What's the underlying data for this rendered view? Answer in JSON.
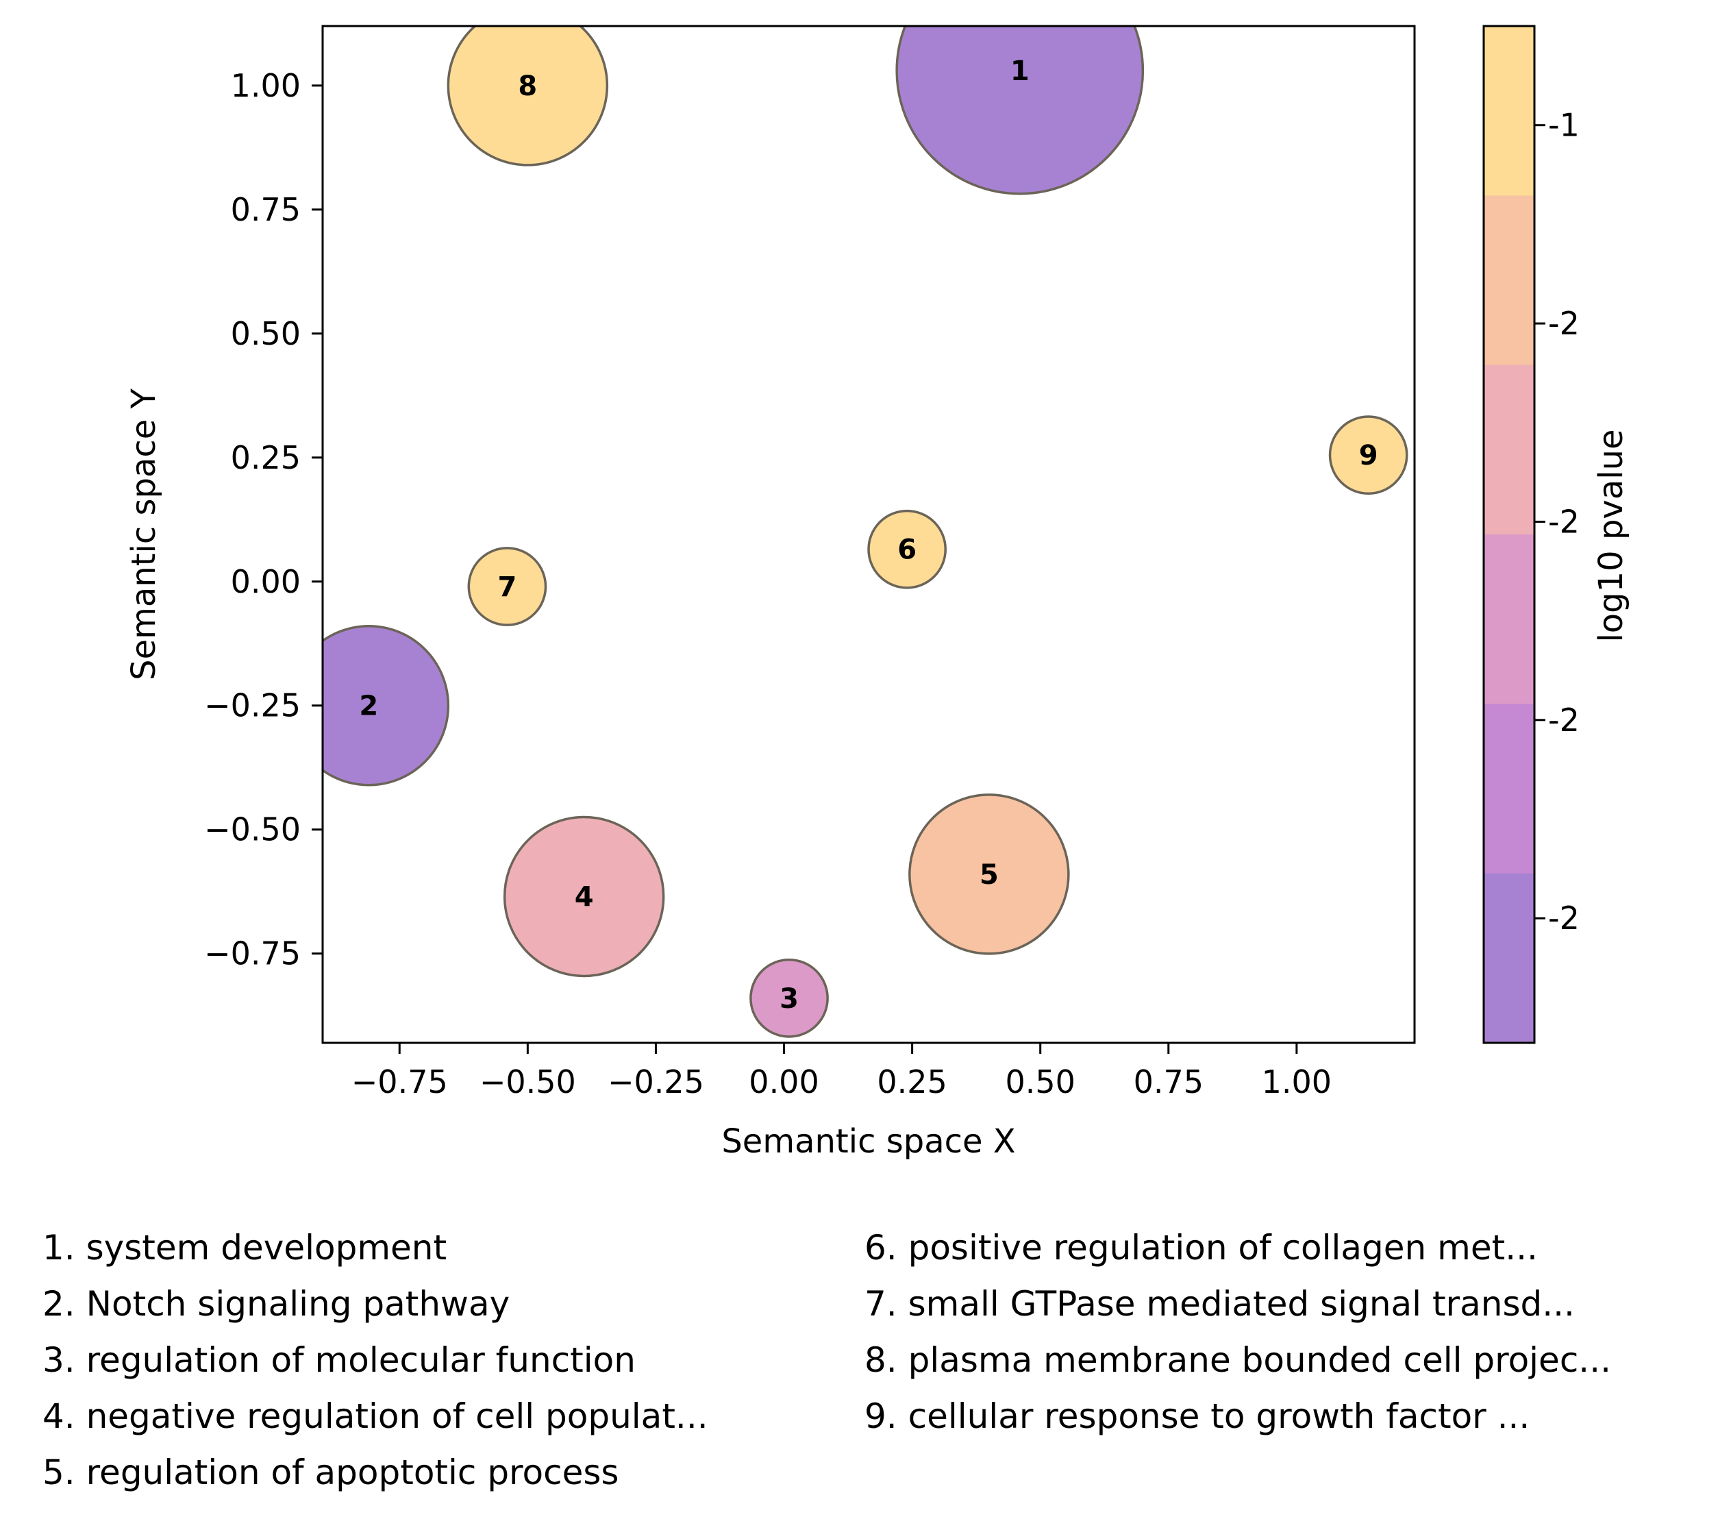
{
  "chart_data": {
    "type": "scatter",
    "xlabel": "Semantic space X",
    "ylabel": "Semantic space Y",
    "xlim": [
      -0.9,
      1.23
    ],
    "ylim": [
      -0.93,
      1.12
    ],
    "x_ticks": [
      -0.75,
      -0.5,
      -0.25,
      0.0,
      0.25,
      0.5,
      0.75,
      1.0
    ],
    "x_tick_labels": [
      "−0.75",
      "−0.50",
      "−0.25",
      "0.00",
      "0.25",
      "0.50",
      "0.75",
      "1.00"
    ],
    "y_ticks": [
      1.0,
      0.75,
      0.5,
      0.25,
      0.0,
      -0.25,
      -0.5,
      -0.75
    ],
    "y_tick_labels": [
      "1.00",
      "0.75",
      "0.50",
      "0.25",
      "0.00",
      "−0.25",
      "−0.50",
      "−0.75"
    ],
    "grid": false,
    "points": [
      {
        "id": "1",
        "x": 0.46,
        "y": 1.03,
        "size": 0.24,
        "color": "#a882d2"
      },
      {
        "id": "2",
        "x": -0.81,
        "y": -0.25,
        "size": 0.155,
        "color": "#a882d2"
      },
      {
        "id": "3",
        "x": 0.01,
        "y": -0.84,
        "size": 0.075,
        "color": "#dc9ac8"
      },
      {
        "id": "4",
        "x": -0.39,
        "y": -0.635,
        "size": 0.155,
        "color": "#eeb0b6"
      },
      {
        "id": "5",
        "x": 0.4,
        "y": -0.59,
        "size": 0.155,
        "color": "#f8c3a2"
      },
      {
        "id": "6",
        "x": 0.24,
        "y": 0.065,
        "size": 0.075,
        "color": "#fedc96"
      },
      {
        "id": "7",
        "x": -0.54,
        "y": -0.01,
        "size": 0.075,
        "color": "#fedc96"
      },
      {
        "id": "8",
        "x": -0.5,
        "y": 1.0,
        "size": 0.155,
        "color": "#fedc96"
      },
      {
        "id": "9",
        "x": 1.14,
        "y": 0.255,
        "size": 0.075,
        "color": "#fedc96"
      }
    ],
    "colorbar": {
      "label": "log10 pvalue",
      "band_colors": [
        "#fedc96",
        "#f8c3a2",
        "#eeb0b6",
        "#dc9ac8",
        "#c588d2",
        "#a882d2"
      ],
      "tick_labels": [
        "-1",
        "-2",
        "-2",
        "-2",
        "-2"
      ],
      "tick_fractions": [
        0.0975,
        0.2925,
        0.4875,
        0.6825,
        0.8775
      ]
    },
    "legend": {
      "left": [
        "1. system development",
        "2. Notch signaling pathway",
        "3. regulation of molecular function",
        "4. negative regulation of cell populat...",
        "5. regulation of apoptotic process"
      ],
      "right": [
        "6. positive regulation of collagen met...",
        "7. small GTPase mediated signal transd...",
        "8. plasma membrane bounded cell projec...",
        "9. cellular response to growth factor ..."
      ]
    }
  }
}
